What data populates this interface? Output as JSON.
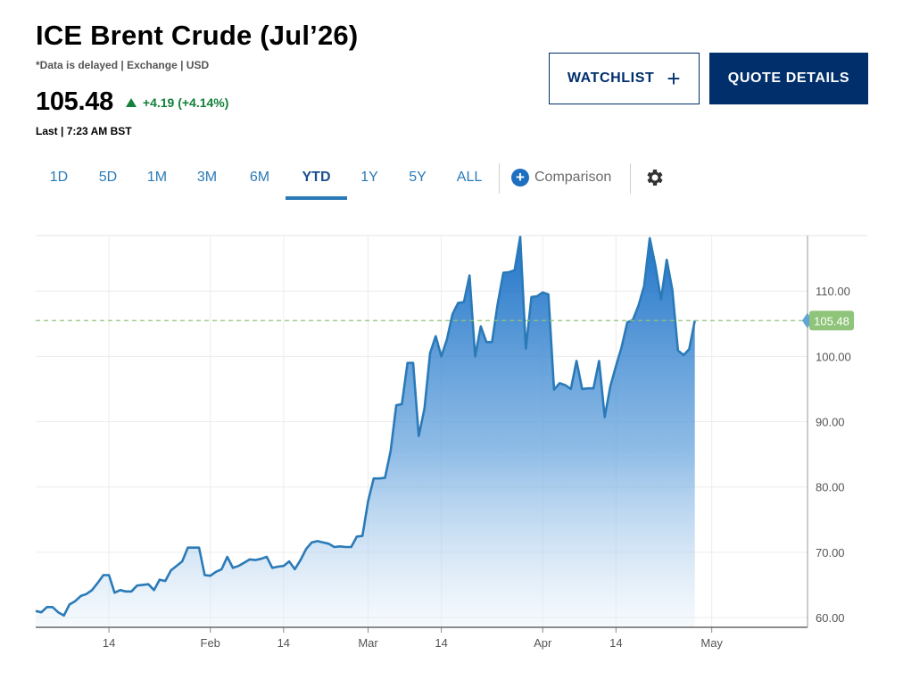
{
  "header": {
    "title": "ICE Brent Crude (Jul’26)",
    "meta": "*Data is delayed | Exchange | USD",
    "price": "105.48",
    "change": "+4.19 (+4.14%)",
    "last": "Last | 7:23 AM BST",
    "watchlist_label": "WATCHLIST",
    "quote_details_label": "QUOTE DETAILS"
  },
  "tabs": [
    "1D",
    "5D",
    "1M",
    "3M",
    "6M",
    "YTD",
    "1Y",
    "5Y",
    "ALL"
  ],
  "active_tab": "YTD",
  "comparison_label": "Comparison",
  "icons": {
    "comparison": "plus-circle-icon",
    "settings": "gear-icon",
    "watchlist": "plus-icon"
  },
  "colors": {
    "up": "#14803b",
    "navy": "#002f6c",
    "line": "#2a7ab8",
    "fill_top": "#1f73c7",
    "badge": "#8fc57a"
  },
  "chart_data": {
    "type": "area",
    "title": "",
    "ylim": [
      58.5,
      118.5
    ],
    "yticks": [
      60,
      70,
      80,
      90,
      100,
      110
    ],
    "ytick_labels": [
      "60.00",
      "70.00",
      "80.00",
      "90.00",
      "100.00",
      "110.00"
    ],
    "xlim": [
      "2026-01-01",
      "2026-05-18"
    ],
    "xticks": [
      {
        "date": "2026-01-14",
        "label": "14"
      },
      {
        "date": "2026-02-01",
        "label": "Feb"
      },
      {
        "date": "2026-02-14",
        "label": "14"
      },
      {
        "date": "2026-03-01",
        "label": "Mar"
      },
      {
        "date": "2026-03-14",
        "label": "14"
      },
      {
        "date": "2026-04-01",
        "label": "Apr"
      },
      {
        "date": "2026-04-14",
        "label": "14"
      },
      {
        "date": "2026-05-01",
        "label": "May"
      }
    ],
    "grid": true,
    "last_value": 105.48,
    "last_value_label": "105.48",
    "series": [
      {
        "name": "",
        "points": [
          [
            "2026-01-01",
            61.0
          ],
          [
            "2026-01-02",
            60.8
          ],
          [
            "2026-01-03",
            61.6
          ],
          [
            "2026-01-04",
            61.6
          ],
          [
            "2026-01-05",
            60.8
          ],
          [
            "2026-01-06",
            60.3
          ],
          [
            "2026-01-07",
            62.0
          ],
          [
            "2026-01-08",
            62.5
          ],
          [
            "2026-01-09",
            63.3
          ],
          [
            "2026-01-10",
            63.6
          ],
          [
            "2026-01-11",
            64.2
          ],
          [
            "2026-01-12",
            65.3
          ],
          [
            "2026-01-13",
            66.5
          ],
          [
            "2026-01-14",
            66.5
          ],
          [
            "2026-01-15",
            63.8
          ],
          [
            "2026-01-16",
            64.2
          ],
          [
            "2026-01-17",
            64.0
          ],
          [
            "2026-01-18",
            64.0
          ],
          [
            "2026-01-19",
            64.9
          ],
          [
            "2026-01-20",
            65.0
          ],
          [
            "2026-01-21",
            65.1
          ],
          [
            "2026-01-22",
            64.2
          ],
          [
            "2026-01-23",
            65.8
          ],
          [
            "2026-01-24",
            65.6
          ],
          [
            "2026-01-25",
            67.2
          ],
          [
            "2026-01-26",
            67.9
          ],
          [
            "2026-01-27",
            68.6
          ],
          [
            "2026-01-28",
            70.7
          ],
          [
            "2026-01-29",
            70.7
          ],
          [
            "2026-01-30",
            70.7
          ],
          [
            "2026-01-31",
            66.5
          ],
          [
            "2026-02-01",
            66.4
          ],
          [
            "2026-02-02",
            67.0
          ],
          [
            "2026-02-03",
            67.4
          ],
          [
            "2026-02-04",
            69.3
          ],
          [
            "2026-02-05",
            67.6
          ],
          [
            "2026-02-06",
            67.9
          ],
          [
            "2026-02-07",
            68.4
          ],
          [
            "2026-02-08",
            68.9
          ],
          [
            "2026-02-09",
            68.8
          ],
          [
            "2026-02-10",
            69.0
          ],
          [
            "2026-02-11",
            69.3
          ],
          [
            "2026-02-12",
            67.6
          ],
          [
            "2026-02-13",
            67.8
          ],
          [
            "2026-02-14",
            67.9
          ],
          [
            "2026-02-15",
            68.6
          ],
          [
            "2026-02-16",
            67.4
          ],
          [
            "2026-02-17",
            68.8
          ],
          [
            "2026-02-18",
            70.5
          ],
          [
            "2026-02-19",
            71.5
          ],
          [
            "2026-02-20",
            71.7
          ],
          [
            "2026-02-21",
            71.5
          ],
          [
            "2026-02-22",
            71.3
          ],
          [
            "2026-02-23",
            70.8
          ],
          [
            "2026-02-24",
            70.9
          ],
          [
            "2026-02-25",
            70.8
          ],
          [
            "2026-02-26",
            70.8
          ],
          [
            "2026-02-27",
            72.4
          ],
          [
            "2026-02-28",
            72.5
          ],
          [
            "2026-03-01",
            77.8
          ],
          [
            "2026-03-02",
            81.3
          ],
          [
            "2026-03-03",
            81.3
          ],
          [
            "2026-03-04",
            81.4
          ],
          [
            "2026-03-05",
            85.5
          ],
          [
            "2026-03-06",
            92.5
          ],
          [
            "2026-03-07",
            92.7
          ],
          [
            "2026-03-08",
            99.0
          ],
          [
            "2026-03-09",
            99.0
          ],
          [
            "2026-03-10",
            87.8
          ],
          [
            "2026-03-11",
            92.0
          ],
          [
            "2026-03-12",
            100.5
          ],
          [
            "2026-03-13",
            103.1
          ],
          [
            "2026-03-14",
            100.0
          ],
          [
            "2026-03-15",
            102.6
          ],
          [
            "2026-03-16",
            106.5
          ],
          [
            "2026-03-17",
            108.2
          ],
          [
            "2026-03-18",
            108.3
          ],
          [
            "2026-03-19",
            112.4
          ],
          [
            "2026-03-20",
            100.0
          ],
          [
            "2026-03-21",
            104.6
          ],
          [
            "2026-03-22",
            102.2
          ],
          [
            "2026-03-23",
            102.2
          ],
          [
            "2026-03-24",
            108.0
          ],
          [
            "2026-03-25",
            112.8
          ],
          [
            "2026-03-26",
            112.9
          ],
          [
            "2026-03-27",
            113.2
          ],
          [
            "2026-03-28",
            118.3
          ],
          [
            "2026-03-29",
            101.2
          ],
          [
            "2026-03-30",
            109.1
          ],
          [
            "2026-03-31",
            109.2
          ],
          [
            "2026-04-01",
            109.8
          ],
          [
            "2026-04-02",
            109.5
          ],
          [
            "2026-04-03",
            94.9
          ],
          [
            "2026-04-04",
            95.9
          ],
          [
            "2026-04-05",
            95.6
          ],
          [
            "2026-04-06",
            95.0
          ],
          [
            "2026-04-07",
            99.3
          ],
          [
            "2026-04-08",
            95.0
          ],
          [
            "2026-04-09",
            95.1
          ],
          [
            "2026-04-10",
            95.1
          ],
          [
            "2026-04-11",
            99.3
          ],
          [
            "2026-04-12",
            90.7
          ],
          [
            "2026-04-13",
            95.4
          ],
          [
            "2026-04-14",
            98.5
          ],
          [
            "2026-04-15",
            101.4
          ],
          [
            "2026-04-16",
            105.2
          ],
          [
            "2026-04-17",
            105.6
          ],
          [
            "2026-04-18",
            107.8
          ],
          [
            "2026-04-19",
            110.8
          ],
          [
            "2026-04-20",
            118.1
          ],
          [
            "2026-04-21",
            113.9
          ],
          [
            "2026-04-22",
            108.7
          ],
          [
            "2026-04-23",
            114.8
          ],
          [
            "2026-04-24",
            110.2
          ],
          [
            "2026-04-25",
            100.9
          ],
          [
            "2026-04-26",
            100.2
          ],
          [
            "2026-04-27",
            101.1
          ],
          [
            "2026-04-28",
            105.48
          ]
        ]
      }
    ]
  }
}
